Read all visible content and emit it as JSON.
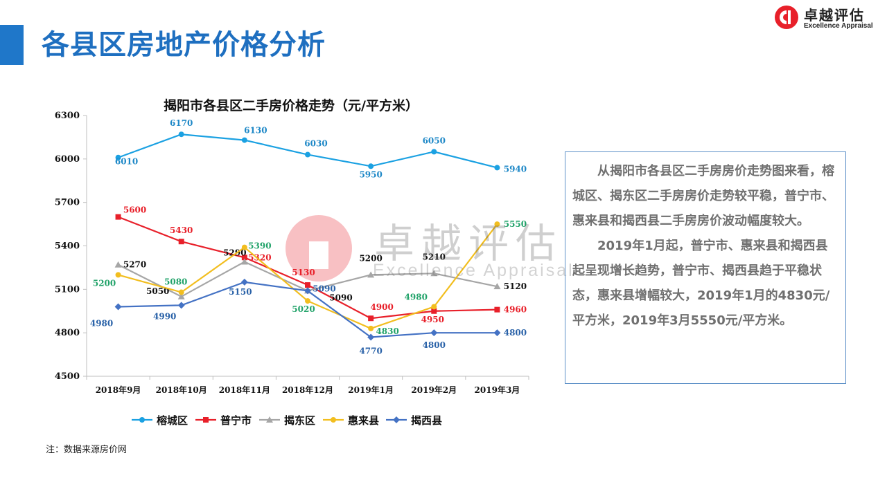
{
  "page": {
    "title": "各县区房地产价格分析",
    "accent_color": "#1f77c9",
    "title_color": "#1e6fc0"
  },
  "logo": {
    "name_cn": "卓越评估",
    "name_en": "Excellence Appraisal",
    "icon": "excellence-logo-icon",
    "brand_color": "#e8202a"
  },
  "watermark": {
    "name_cn": "卓越评估",
    "name_en": "Excellence Appraisal"
  },
  "chart_data": {
    "type": "line",
    "title": "揭阳市各县区二手房价格走势（元/平方米）",
    "xlabel": "",
    "ylabel": "",
    "categories": [
      "2018年9月",
      "2018年10月",
      "2018年11月",
      "2018年12月",
      "2019年1月",
      "2019年2月",
      "2019年3月"
    ],
    "ylim": [
      4500,
      6300
    ],
    "yticks": [
      4500,
      4800,
      5100,
      5400,
      5700,
      6000,
      6300
    ],
    "grid": false,
    "legend_position": "bottom",
    "series": [
      {
        "name": "榕城区",
        "values": [
          6010,
          6170,
          6130,
          6030,
          5950,
          6050,
          5940
        ],
        "color": "#1ba1e2",
        "label_color": "#1e88c7",
        "marker": "circle"
      },
      {
        "name": "普宁市",
        "values": [
          5600,
          5430,
          5320,
          5130,
          4900,
          4950,
          4960
        ],
        "color": "#e8202a",
        "label_color": "#e8202a",
        "marker": "square"
      },
      {
        "name": "揭东区",
        "values": [
          5270,
          5050,
          5290,
          5090,
          5200,
          5210,
          5120
        ],
        "color": "#a6a6a6",
        "label_color": "#111111",
        "marker": "triangle"
      },
      {
        "name": "惠来县",
        "values": [
          5200,
          5080,
          5390,
          5020,
          4830,
          4980,
          5550
        ],
        "color": "#f2be1f",
        "label_color": "#22a36a",
        "marker": "circle"
      },
      {
        "name": "揭西县",
        "values": [
          4980,
          4990,
          5150,
          5090,
          4770,
          4800,
          4800
        ],
        "color": "#4472c4",
        "label_color": "#2a62a8",
        "marker": "diamond"
      }
    ]
  },
  "analysis": {
    "paragraph1": "从揭阳市各县区二手房房价走势图来看，榕城区、揭东区二手房房价走势较平稳，普宁市、惠来县和揭西县二手房房价波动幅度较大。",
    "paragraph2": "2019年1月起，普宁市、惠来县和揭西县起呈现增长趋势，普宁市、揭西县趋于平稳状态，惠来县增幅较大，2019年1月的4830元/平方米，2019年3月5550元/平方米。"
  },
  "footnote": "注：数据来源房价网"
}
